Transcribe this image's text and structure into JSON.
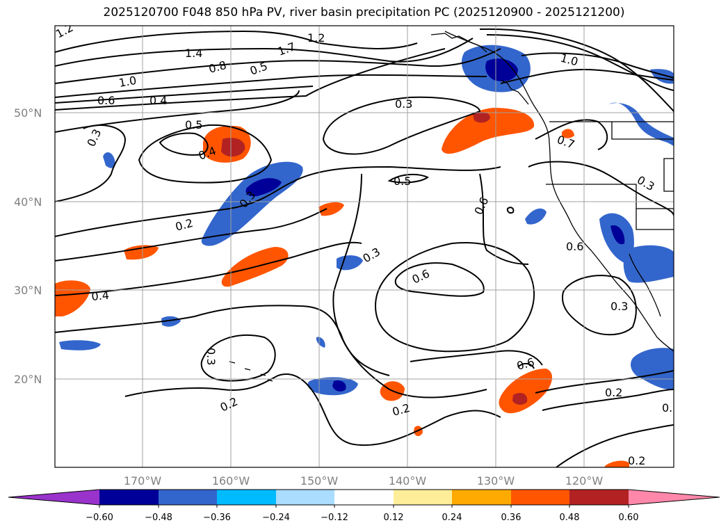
{
  "title": "2025120700 F048 850 hPa PV, river basin precipitation PC (2025120900 - 2025121200)",
  "map": {
    "lat_ticks": [
      "50°N",
      "40°N",
      "30°N",
      "20°N"
    ],
    "lon_ticks": [
      "170°W",
      "160°W",
      "150°W",
      "140°W",
      "130°W",
      "120°W"
    ],
    "contour_labels": [
      "1.2",
      "1.4",
      "1.2",
      "1.7",
      "0.8",
      "0.5",
      "1.0",
      "0.6",
      "0.4",
      "0.3",
      "1.0",
      "0.5",
      "0.4",
      "0.3",
      "0.5",
      "0.3",
      "0.6",
      "0.2",
      "0.6",
      "0.3",
      "0.4",
      "0.6",
      "0.3",
      "0.3",
      "0.2",
      "0.2",
      "0.6",
      "0.2",
      "0.2",
      "0.7",
      "0.3",
      "0."
    ],
    "colors": {
      "land_outline": "#000000",
      "grid": "#a0a0a0"
    }
  },
  "colorbar": {
    "tick_labels": [
      "−0.60",
      "−0.48",
      "−0.36",
      "−0.24",
      "−0.12",
      "0.12",
      "0.24",
      "0.36",
      "0.48",
      "0.60"
    ],
    "colors": [
      "#9933cc",
      "#000099",
      "#3366cc",
      "#00bbff",
      "#aaddff",
      "#ffffff",
      "#ffee99",
      "#ffaa00",
      "#ff5500",
      "#b22222",
      "#ff88aa"
    ]
  }
}
